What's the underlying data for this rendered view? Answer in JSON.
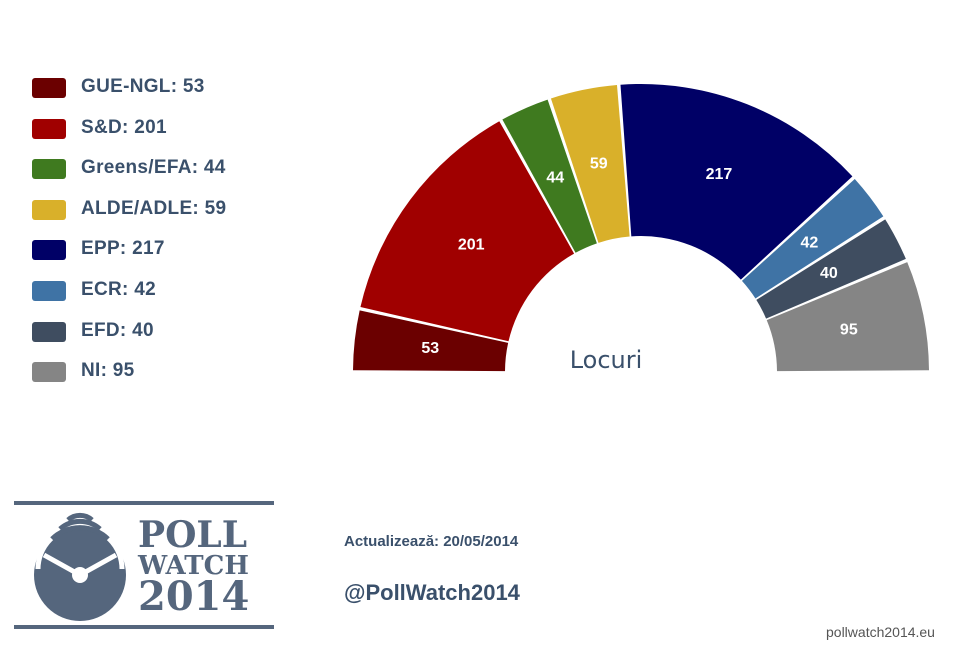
{
  "chart_data": {
    "type": "parliament-semicircle",
    "center_label": "Locuri",
    "series": [
      {
        "name": "GUE-NGL",
        "value": 53,
        "color": "#6b0000"
      },
      {
        "name": "S&D",
        "value": 201,
        "color": "#a00000"
      },
      {
        "name": "Greens/EFA",
        "value": 44,
        "color": "#3f7a1f"
      },
      {
        "name": "ALDE/ADLE",
        "value": 59,
        "color": "#d9b02a"
      },
      {
        "name": "EPP",
        "value": 217,
        "color": "#000066"
      },
      {
        "name": "ECR",
        "value": 42,
        "color": "#3f73a5"
      },
      {
        "name": "EFD",
        "value": 40,
        "color": "#3f4d60"
      },
      {
        "name": "NI",
        "value": 95,
        "color": "#858585"
      }
    ],
    "legend": {
      "placement": "left",
      "items": [
        "GUE-NGL: 53",
        "S&D: 201",
        "Greens/EFA: 44",
        "ALDE/ADLE: 59",
        "EPP: 217",
        "ECR: 42",
        "EFD: 40",
        "NI: 95"
      ]
    }
  },
  "logo": {
    "line1": "POLL",
    "line2": "WATCH",
    "line3": "2014"
  },
  "footer": {
    "updated": "Actualizează: 20/05/2014",
    "handle": "@PollWatch2014",
    "site": "pollwatch2014.eu"
  }
}
